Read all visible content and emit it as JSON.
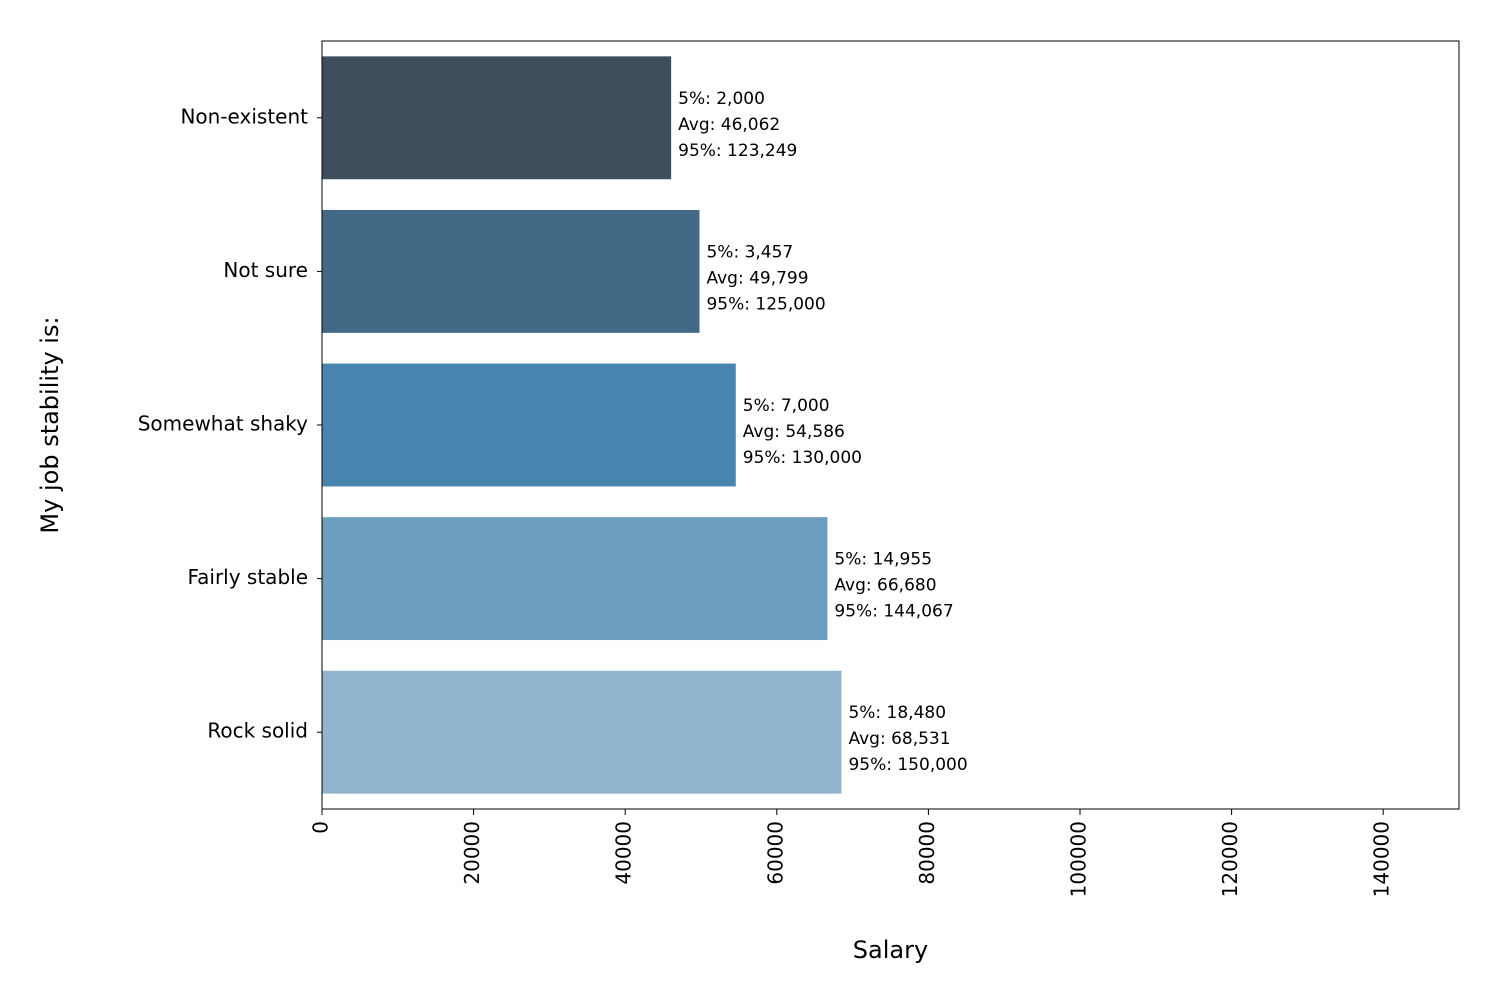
{
  "chart_data": {
    "type": "bar",
    "orientation": "horizontal",
    "title": "",
    "xlabel": "Salary",
    "ylabel": "My job stability is:",
    "xlim": [
      0,
      150000
    ],
    "xticks": [
      0,
      20000,
      40000,
      60000,
      80000,
      100000,
      120000,
      140000
    ],
    "grid": false,
    "legend": "none",
    "categories": [
      "Non-existent",
      "Not sure",
      "Somewhat shaky",
      "Fairly stable",
      "Rock solid"
    ],
    "values": [
      46062,
      49799,
      54586,
      66680,
      68531
    ],
    "p5": [
      2000,
      3457,
      7000,
      14955,
      18480
    ],
    "p95": [
      123249,
      125000,
      130000,
      144067,
      150000
    ],
    "colors": [
      "#3d4f5d",
      "#426986",
      "#4884b0",
      "#6d9ebf",
      "#92b5cf"
    ],
    "bar_labels": [
      [
        "5%: 2,000",
        "Avg: 46,062",
        "95%: 123,249"
      ],
      [
        "5%: 3,457",
        "Avg: 49,799",
        "95%: 125,000"
      ],
      [
        "5%: 7,000",
        "Avg: 54,586",
        "95%: 130,000"
      ],
      [
        "5%: 14,955",
        "Avg: 66,680",
        "95%: 144,067"
      ],
      [
        "5%: 18,480",
        "Avg: 68,531",
        "95%: 150,000"
      ]
    ]
  }
}
